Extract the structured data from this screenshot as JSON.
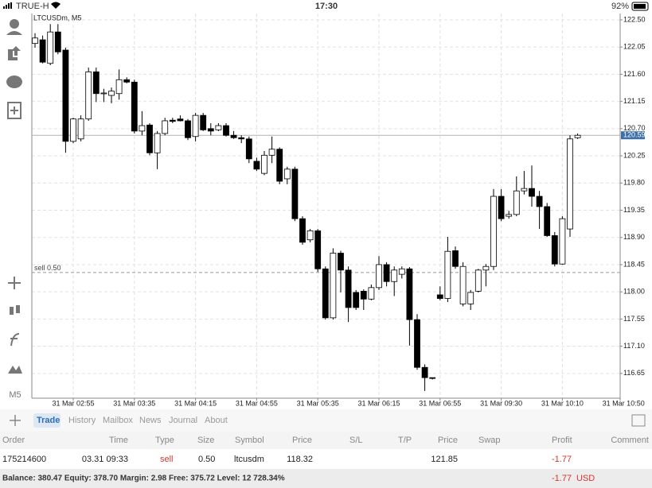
{
  "status_bar": {
    "carrier": "TRUE-H",
    "time": "17:30",
    "battery": "92%"
  },
  "toolbar": {
    "timeframe": "M5"
  },
  "chart_data": {
    "type": "candlestick",
    "symbol_label": "LTCUSDm, M5",
    "categories": [
      null,
      null,
      null,
      null,
      null,
      "31 Mar 02:55",
      null,
      null,
      null,
      null,
      null,
      null,
      null,
      "31 Mar 03:35",
      null,
      null,
      null,
      null,
      null,
      null,
      null,
      "31 Mar 04:15",
      null,
      null,
      null,
      null,
      null,
      null,
      null,
      "31 Mar 04:55",
      null,
      null,
      null,
      null,
      null,
      null,
      null,
      "31 Mar 05:35",
      null,
      null,
      null,
      null,
      null,
      null,
      null,
      "31 Mar 06:15",
      null,
      null,
      null,
      null,
      null,
      null,
      null,
      "31 Mar 06:55",
      null,
      null,
      null,
      null,
      null,
      null,
      null,
      "31 Mar 09:30",
      null,
      null,
      null,
      null,
      null,
      null,
      null,
      "31 Mar 10:10",
      null,
      null,
      null,
      null,
      null,
      null,
      null,
      "31 Mar 10:50"
    ],
    "open": [
      122.11,
      122.17,
      121.78,
      122.3,
      122.0,
      120.49,
      120.53,
      120.86,
      121.64,
      121.28,
      121.25,
      121.28,
      121.51,
      121.47,
      120.66,
      120.76,
      120.3,
      120.62,
      120.84,
      120.86,
      120.83,
      120.57,
      120.92,
      120.7,
      120.68,
      120.75,
      120.59,
      120.55,
      120.53,
      120.16,
      119.96,
      120.26,
      120.36,
      119.87,
      120.03,
      119.21,
      118.86,
      119.01,
      118.38,
      117.57,
      118.64,
      118.36,
      117.99,
      118.01,
      117.88,
      118.07,
      118.45,
      118.17,
      118.29,
      118.38,
      117.54,
      116.75,
      116.58,
      117.95,
      117.89,
      118.68,
      117.8,
      117.8,
      118.01,
      118.36,
      118.42,
      119.58,
      119.25,
      119.28,
      119.67,
      119.71,
      119.58,
      119.41,
      118.93,
      118.46,
      119.04,
      120.55,
      null,
      null,
      null,
      null,
      null,
      null
    ],
    "high": [
      122.28,
      122.24,
      122.43,
      122.43,
      122.04,
      120.88,
      120.92,
      121.71,
      121.71,
      121.36,
      121.38,
      121.68,
      121.55,
      121.51,
      120.99,
      120.79,
      120.66,
      120.88,
      120.88,
      120.92,
      120.86,
      120.96,
      120.96,
      120.79,
      120.79,
      120.79,
      120.66,
      120.59,
      120.57,
      120.22,
      120.33,
      120.57,
      120.39,
      120.07,
      120.07,
      119.25,
      119.04,
      119.04,
      118.42,
      118.72,
      118.68,
      118.42,
      118.03,
      118.04,
      118.12,
      118.59,
      118.49,
      118.42,
      118.42,
      118.41,
      117.63,
      116.8,
      116.58,
      118.09,
      118.91,
      118.75,
      118.49,
      118.03,
      118.38,
      118.46,
      119.7,
      119.7,
      119.34,
      119.91,
      120.0,
      120.09,
      119.67,
      119.47,
      118.99,
      119.25,
      120.59,
      120.62,
      null,
      null,
      null,
      null,
      null,
      null
    ],
    "low": [
      122.04,
      121.78,
      121.75,
      121.93,
      120.3,
      120.46,
      120.49,
      120.83,
      121.14,
      121.14,
      121.12,
      121.18,
      121.45,
      120.62,
      120.59,
      120.26,
      120.03,
      120.59,
      120.79,
      120.82,
      120.51,
      120.49,
      120.66,
      120.59,
      120.66,
      120.57,
      120.53,
      120.46,
      120.13,
      120.0,
      119.93,
      120.13,
      119.78,
      119.78,
      119.17,
      118.78,
      118.82,
      118.33,
      117.54,
      117.54,
      117.99,
      117.5,
      117.7,
      117.7,
      117.86,
      118.03,
      118.09,
      117.93,
      118.22,
      117.11,
      116.71,
      116.36,
      116.55,
      117.86,
      117.83,
      118.38,
      117.76,
      117.7,
      117.99,
      118.09,
      118.36,
      119.17,
      119.21,
      119.25,
      119.61,
      119.41,
      119.04,
      118.91,
      118.42,
      118.45,
      118.91,
      120.53,
      null,
      null,
      null,
      null,
      null,
      null
    ],
    "close": [
      122.2,
      121.8,
      122.3,
      121.97,
      120.49,
      120.86,
      120.86,
      121.64,
      121.28,
      121.29,
      121.32,
      121.51,
      121.47,
      120.66,
      120.75,
      120.3,
      120.62,
      120.83,
      120.82,
      120.83,
      120.55,
      120.92,
      120.68,
      120.66,
      120.75,
      120.59,
      120.55,
      120.53,
      120.2,
      120.03,
      120.26,
      120.36,
      119.83,
      120.03,
      119.21,
      118.82,
      119.01,
      118.38,
      117.57,
      118.64,
      118.36,
      117.74,
      117.74,
      117.88,
      118.07,
      118.45,
      118.17,
      118.36,
      118.38,
      117.54,
      116.75,
      116.58,
      116.57,
      117.89,
      118.67,
      118.42,
      118.42,
      117.99,
      118.36,
      118.42,
      119.58,
      119.21,
      119.28,
      119.67,
      119.71,
      119.58,
      119.41,
      118.93,
      118.46,
      119.21,
      120.53,
      120.59,
      null,
      null,
      null,
      null,
      null,
      null
    ],
    "ylim": [
      116.24,
      122.605
    ],
    "yticks": [
      {
        "value": 122.5,
        "label": "122.50"
      },
      122.05,
      {
        "value": 121.6,
        "label": "121.60"
      },
      121.15,
      {
        "value": 120.7,
        "label": "120.70"
      },
      120.25,
      {
        "value": 119.8,
        "label": "119.80"
      },
      119.35,
      {
        "value": 118.9,
        "label": "118.90"
      },
      118.45,
      {
        "value": 118.0,
        "label": "118.00"
      },
      117.55,
      {
        "value": 117.1,
        "label": "117.10"
      },
      116.65
    ],
    "grid": true,
    "up_color": "#ffffff",
    "down_color": "#000000",
    "current_price": 120.59,
    "order_line": {
      "label": "sell 0.50",
      "value": 118.32
    }
  },
  "tabs": [
    "Trade",
    "History",
    "Mailbox",
    "News",
    "Journal",
    "About"
  ],
  "active_tab": 0,
  "table": {
    "columns": [
      "Order",
      "Time",
      "Type",
      "Size",
      "Symbol",
      "Price",
      "S/L",
      "T/P",
      "Price",
      "Swap",
      "Profit",
      "Comment"
    ],
    "rows": [
      [
        "175214600",
        "03.31 09:33",
        "sell",
        "0.50",
        "ltcusdm",
        "118.32",
        null,
        null,
        "121.85",
        null,
        "-1.77",
        null
      ]
    ]
  },
  "footer": {
    "summary": "Balance: 380.47 Equity: 378.70 Margin: 2.98 Free: 375.72 Level: 12 728.34%",
    "profit": "-1.77",
    "currency": "USD"
  }
}
